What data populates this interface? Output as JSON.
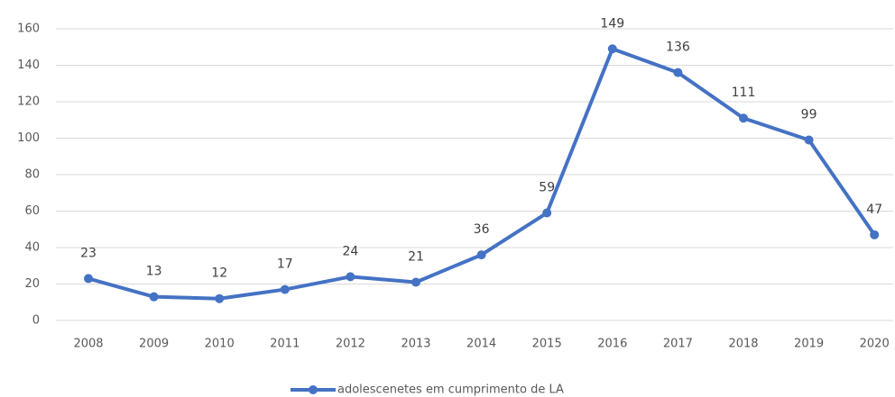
{
  "chart_data": {
    "type": "line",
    "categories": [
      "2008",
      "2009",
      "2010",
      "2011",
      "2012",
      "2013",
      "2014",
      "2015",
      "2016",
      "2017",
      "2018",
      "2019",
      "2020"
    ],
    "series": [
      {
        "name": "adolescenetes em cumprimento de LA",
        "color": "#4472c4",
        "values": [
          23,
          13,
          12,
          17,
          24,
          21,
          36,
          59,
          149,
          136,
          111,
          99,
          47
        ]
      }
    ],
    "ylim": [
      0,
      160
    ],
    "yticks": [
      0,
      20,
      40,
      60,
      80,
      100,
      120,
      140,
      160
    ],
    "grid": true,
    "legend": "bottom"
  }
}
